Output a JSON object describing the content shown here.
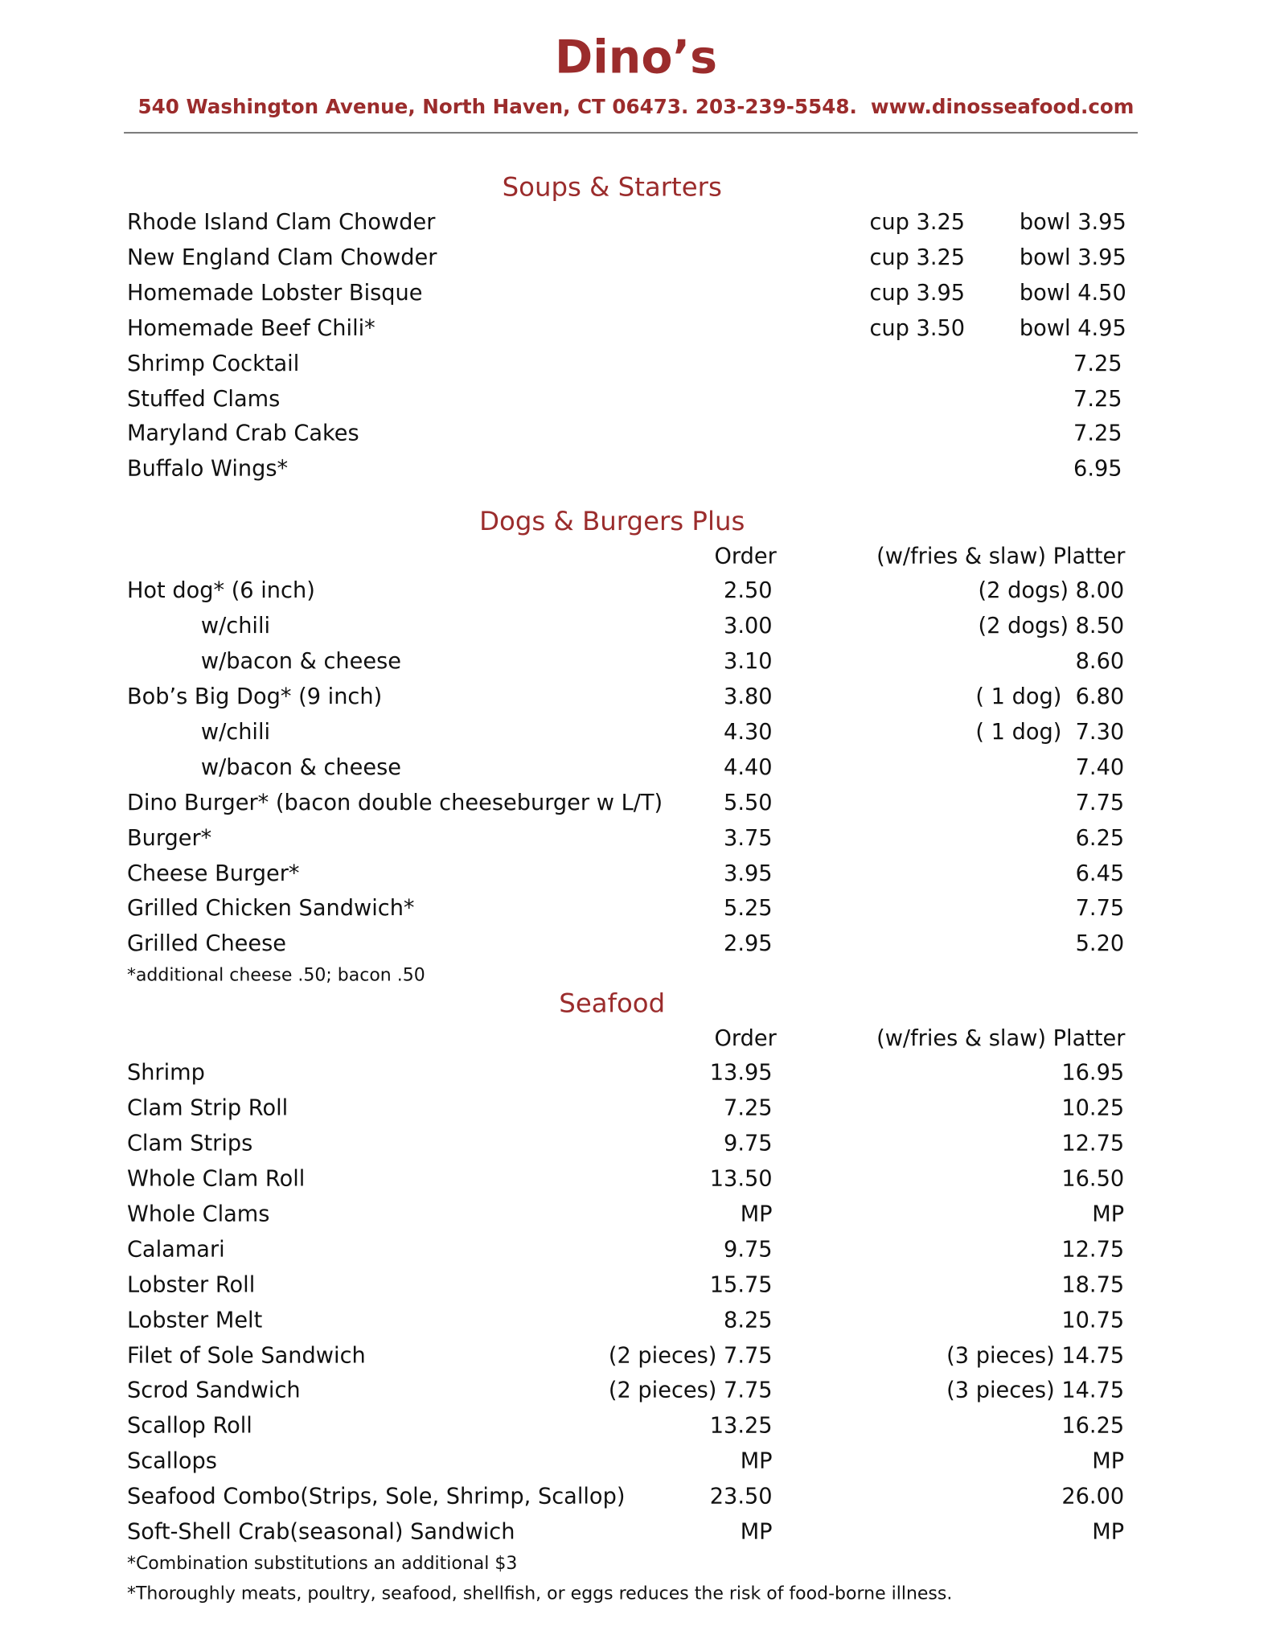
{
  "header": {
    "title": "Dino’s",
    "address": "540 Washington Avenue, North Haven, CT 06473. 203-239-5548.  www.dinosseafood.com"
  },
  "sections": [
    {
      "title": "Soups & Starters",
      "items": [
        {
          "name": "Rhode Island Clam Chowder",
          "cup": "cup 3.25",
          "bowl": "bowl 3.95"
        },
        {
          "name": "New England Clam Chowder",
          "cup": "cup 3.25",
          "bowl": "bowl 3.95"
        },
        {
          "name": "Homemade Lobster Bisque",
          "cup": "cup 3.95",
          "bowl": "bowl 4.50"
        },
        {
          "name": "Homemade Beef Chili*",
          "cup": "cup 3.50",
          "bowl": "bowl 4.95"
        },
        {
          "name": "Shrimp Cocktail",
          "price": "7.25"
        },
        {
          "name": "Stuffed Clams",
          "price": "7.25"
        },
        {
          "name": "Maryland Crab Cakes",
          "price": "7.25"
        },
        {
          "name": "Buffalo Wings*",
          "price": "6.95"
        }
      ]
    },
    {
      "title": "Dogs & Burgers Plus",
      "columns": [
        "Order",
        "(w/fries & slaw) Platter"
      ],
      "items": [
        {
          "name": "Hot dog* (6 inch)",
          "order": "2.50",
          "platter": "(2 dogs) 8.00",
          "variants": [
            {
              "name": "w/chili",
              "order": "3.00",
              "platter": "(2 dogs) 8.50"
            },
            {
              "name": "w/bacon & cheese",
              "order": "3.10",
              "platter": "8.60"
            }
          ]
        },
        {
          "name": "Bob’s Big Dog* (9 inch)",
          "order": "3.80",
          "platter": "( 1 dog)  6.80",
          "variants": [
            {
              "name": "w/chili",
              "order": "4.30",
              "platter": "( 1 dog)  7.30"
            },
            {
              "name": "w/bacon & cheese",
              "order": "4.40",
              "platter": "7.40"
            }
          ]
        },
        {
          "name": "Dino Burger* (bacon double cheeseburger w L/T)",
          "order": "5.50",
          "platter": "7.75"
        },
        {
          "name": "Burger*",
          "order": "3.75",
          "platter": "6.25"
        },
        {
          "name": "Cheese Burger*",
          "order": "3.95",
          "platter": "6.45"
        },
        {
          "name": "Grilled Chicken Sandwich*",
          "order": "5.25",
          "platter": "7.75"
        },
        {
          "name": "Grilled Cheese",
          "order": "2.95",
          "platter": "5.20"
        }
      ],
      "notes": [
        "*additional cheese .50; bacon .50"
      ]
    },
    {
      "title": "Seafood",
      "columns": [
        "Order",
        "(w/fries & slaw) Platter"
      ],
      "items": [
        {
          "name": "Shrimp",
          "order": "13.95",
          "platter": "16.95"
        },
        {
          "name": "Clam Strip Roll",
          "order": "7.25",
          "platter": "10.25"
        },
        {
          "name": "Clam Strips",
          "order": "9.75",
          "platter": "12.75"
        },
        {
          "name": "Whole Clam Roll",
          "order": "13.50",
          "platter": "16.50"
        },
        {
          "name": "Whole Clams",
          "order": "MP",
          "platter": "MP"
        },
        {
          "name": "Calamari",
          "order": "9.75",
          "platter": "12.75"
        },
        {
          "name": "Lobster Roll",
          "order": "15.75",
          "platter": "18.75"
        },
        {
          "name": "Lobster Melt",
          "order": "8.25",
          "platter": "10.75"
        },
        {
          "name": "Filet of Sole Sandwich",
          "order": "(2 pieces) 7.75",
          "platter": "(3 pieces) 14.75"
        },
        {
          "name": "Scrod Sandwich",
          "order": "(2 pieces) 7.75",
          "platter": "(3 pieces) 14.75"
        },
        {
          "name": "Scallop Roll",
          "order": "13.25",
          "platter": "16.25"
        },
        {
          "name": "Scallops",
          "order": "MP",
          "platter": "MP"
        },
        {
          "name": "Seafood Combo(Strips, Sole, Shrimp, Scallop)",
          "order": "23.50",
          "platter": "26.00"
        },
        {
          "name": "Soft-Shell Crab(seasonal) Sandwich",
          "order": "MP",
          "platter": "MP"
        }
      ],
      "notes": [
        "*Combination substitutions an additional $3",
        "*Thoroughly meats, poultry, seafood, shellfish, or eggs reduces the risk of food-borne illness."
      ]
    }
  ]
}
